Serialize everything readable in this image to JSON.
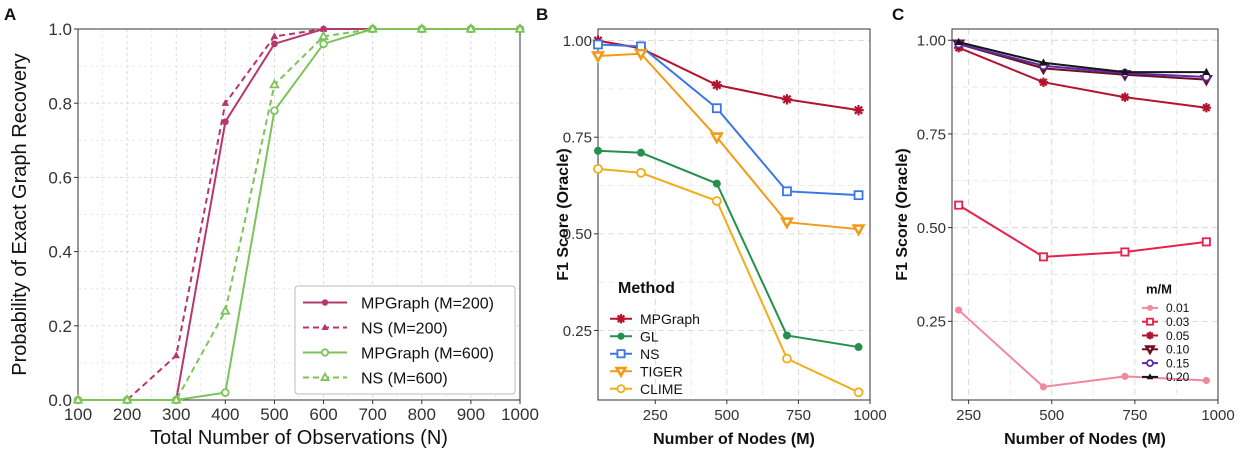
{
  "panels": [
    {
      "label": "A"
    },
    {
      "label": "B"
    },
    {
      "label": "C"
    }
  ],
  "chart_data": [
    {
      "panel": "A",
      "type": "line",
      "xlabel": "Total Number of Observations (N)",
      "ylabel": "Probability of Exact Graph Recovery",
      "xlim": [
        100,
        1000
      ],
      "ylim": [
        0,
        1
      ],
      "x_ticks": [
        "100",
        "200",
        "300",
        "400",
        "500",
        "600",
        "700",
        "800",
        "900",
        "1000"
      ],
      "y_ticks": [
        "0.0",
        "0.2",
        "0.4",
        "0.6",
        "0.8",
        "1.0"
      ],
      "grid": true,
      "legend_position": "bottom-right",
      "x": [
        100,
        200,
        300,
        400,
        500,
        600,
        700,
        800,
        900,
        1000
      ],
      "series": [
        {
          "name": "MPGraph (M=200)",
          "color": "#b5376b",
          "dash": "solid",
          "marker": "filled-circle",
          "values": [
            0,
            0,
            0,
            0.75,
            0.96,
            1.0,
            1.0,
            1.0,
            1.0,
            1.0
          ]
        },
        {
          "name": "NS (M=200)",
          "color": "#b5376b",
          "dash": "dashed",
          "marker": "filled-triangle",
          "values": [
            0,
            0,
            0.12,
            0.8,
            0.98,
            1.0,
            1.0,
            1.0,
            1.0,
            1.0
          ]
        },
        {
          "name": "MPGraph (M=600)",
          "color": "#7cc359",
          "dash": "solid",
          "marker": "open-circle",
          "values": [
            0,
            0,
            0,
            0.02,
            0.78,
            0.96,
            1.0,
            1.0,
            1.0,
            1.0
          ]
        },
        {
          "name": "NS (M=600)",
          "color": "#7cc359",
          "dash": "dashed",
          "marker": "open-triangle",
          "values": [
            0,
            0,
            0,
            0.24,
            0.85,
            0.98,
            1.0,
            1.0,
            1.0,
            1.0
          ]
        }
      ]
    },
    {
      "panel": "B",
      "type": "line",
      "xlabel": "Number of Nodes (M)",
      "ylabel": "F1 Score (Oracle)",
      "xlim": [
        50,
        1000
      ],
      "ylim": [
        0.07,
        1.03
      ],
      "x_ticks": [
        "250",
        "500",
        "750",
        "1000"
      ],
      "y_ticks": [
        "0.25",
        "0.50",
        "0.75",
        "1.00"
      ],
      "grid": true,
      "legend_title": "Method",
      "legend_position": "bottom-left",
      "series": [
        {
          "name": "MPGraph",
          "color": "#b5122e",
          "marker": "asterisk",
          "x": [
            50,
            200,
            465,
            710,
            960
          ],
          "values": [
            1.0,
            0.98,
            0.885,
            0.848,
            0.82
          ]
        },
        {
          "name": "GL",
          "color": "#24914a",
          "marker": "filled-circle",
          "x": [
            50,
            200,
            465,
            710,
            960
          ],
          "values": [
            0.715,
            0.71,
            0.63,
            0.237,
            0.207
          ]
        },
        {
          "name": "NS",
          "color": "#3a76e6",
          "marker": "open-square",
          "x": [
            50,
            200,
            465,
            710,
            960
          ],
          "values": [
            0.99,
            0.985,
            0.825,
            0.61,
            0.6
          ]
        },
        {
          "name": "TIGER",
          "color": "#f39a16",
          "marker": "down-triangle",
          "x": [
            50,
            200,
            465,
            710,
            960
          ],
          "values": [
            0.96,
            0.966,
            0.75,
            0.53,
            0.512
          ]
        },
        {
          "name": "CLIME",
          "color": "#f1ad1a",
          "marker": "open-circle",
          "x": [
            50,
            200,
            465,
            710,
            960
          ],
          "values": [
            0.668,
            0.658,
            0.585,
            0.177,
            0.09
          ]
        }
      ]
    },
    {
      "panel": "C",
      "type": "line",
      "xlabel": "Number of Nodes (M)",
      "ylabel": "F1 Score (Oracle)",
      "xlim": [
        200,
        1000
      ],
      "ylim": [
        0.04,
        1.03
      ],
      "x_ticks": [
        "250",
        "500",
        "750",
        "1000"
      ],
      "y_ticks": [
        "0.25",
        "0.50",
        "0.75",
        "1.00"
      ],
      "grid": true,
      "legend_title": "m/M",
      "legend_position": "right",
      "series": [
        {
          "name": "0.01",
          "color": "#f0899e",
          "marker": "filled-circle",
          "x": [
            220,
            475,
            720,
            965
          ],
          "values": [
            0.28,
            0.075,
            0.103,
            0.092
          ]
        },
        {
          "name": "0.03",
          "color": "#e8204d",
          "marker": "open-square",
          "x": [
            220,
            475,
            720,
            965
          ],
          "values": [
            0.56,
            0.422,
            0.435,
            0.462
          ]
        },
        {
          "name": "0.05",
          "color": "#b5122e",
          "marker": "asterisk",
          "x": [
            220,
            475,
            720,
            965
          ],
          "values": [
            0.98,
            0.888,
            0.848,
            0.82
          ]
        },
        {
          "name": "0.10",
          "color": "#6e0f24",
          "marker": "down-triangle",
          "x": [
            220,
            475,
            720,
            965
          ],
          "values": [
            0.99,
            0.925,
            0.908,
            0.895
          ]
        },
        {
          "name": "0.15",
          "color": "#5a2aa8",
          "marker": "open-circle",
          "x": [
            220,
            475,
            720,
            965
          ],
          "values": [
            0.99,
            0.932,
            0.912,
            0.902
          ]
        },
        {
          "name": "0.20",
          "color": "#161616",
          "marker": "filled-triangle",
          "x": [
            220,
            475,
            720,
            965
          ],
          "values": [
            0.995,
            0.94,
            0.915,
            0.915
          ]
        }
      ]
    }
  ]
}
